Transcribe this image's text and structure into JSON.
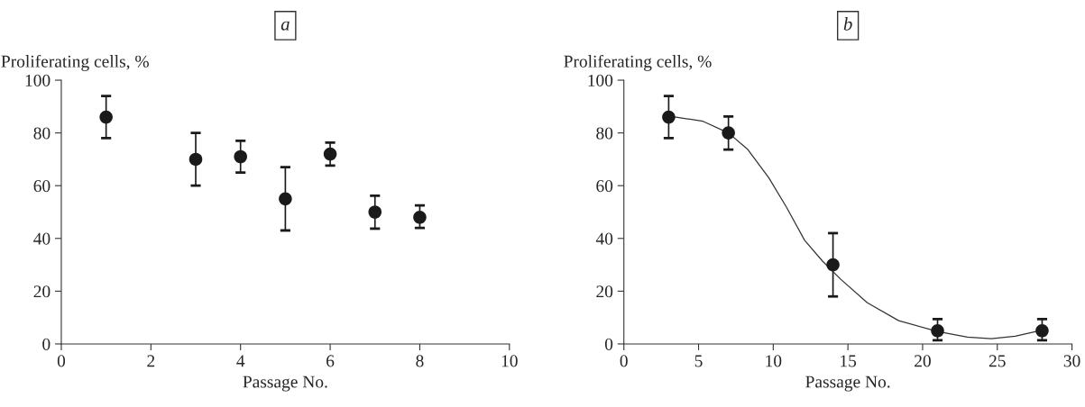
{
  "chart_data": [
    {
      "type": "scatter",
      "title": "a",
      "xlabel": "Passage No.",
      "ylabel": "Proliferating cells, %",
      "x": [
        1,
        3,
        4,
        5,
        6,
        7,
        8
      ],
      "values": [
        86,
        70,
        71,
        55,
        72,
        50,
        48
      ],
      "errors": [
        [
          78,
          94
        ],
        [
          60,
          80
        ],
        [
          65,
          77
        ],
        [
          43,
          67
        ],
        [
          67.6,
          76.3
        ],
        [
          43.7,
          56.2
        ],
        [
          44,
          52.5
        ]
      ],
      "color": "#1a1a1a",
      "marker": "circle",
      "xlim": [
        0,
        10
      ],
      "xticks": [
        0,
        2,
        4,
        6,
        8,
        10
      ],
      "ylim": [
        0,
        100
      ],
      "yticks": [
        0,
        20,
        40,
        60,
        80,
        100
      ],
      "grid": false,
      "legend": false
    },
    {
      "type": "scatter",
      "title": "b",
      "xlabel": "Passage No.",
      "ylabel": "Proliferating cells, %",
      "series": [
        {
          "type": "scatter",
          "color": "#1a1a1a",
          "marker": "circle",
          "x": [
            3,
            7,
            14,
            21,
            28
          ],
          "values": [
            86,
            80,
            30,
            5,
            5
          ],
          "errors": [
            [
              78,
              94
            ],
            [
              73.7,
              86.2
            ],
            [
              18,
              42
            ],
            [
              1.4,
              9.4
            ],
            [
              1.4,
              9.4
            ]
          ]
        },
        {
          "type": "line",
          "color": "#333333",
          "marker": "none",
          "line_style": "solid",
          "x": [
            3,
            3.5,
            5.3,
            7,
            8.3,
            9.7,
            10.9,
            12.1,
            13.3,
            14.5,
            16.3,
            18.4,
            21,
            23,
            24.6,
            26.2,
            28
          ],
          "values": [
            86.5,
            86,
            84.4,
            80,
            73.7,
            63,
            51.7,
            39.3,
            31.4,
            24.6,
            15.6,
            8.8,
            4.7,
            2.6,
            2,
            2.9,
            5.2
          ]
        }
      ],
      "xlim": [
        0,
        30
      ],
      "xticks": [
        0,
        5,
        10,
        15,
        20,
        25,
        30
      ],
      "ylim": [
        0,
        100
      ],
      "yticks": [
        0,
        20,
        40,
        60,
        80,
        100
      ],
      "grid": false,
      "legend": false
    }
  ]
}
